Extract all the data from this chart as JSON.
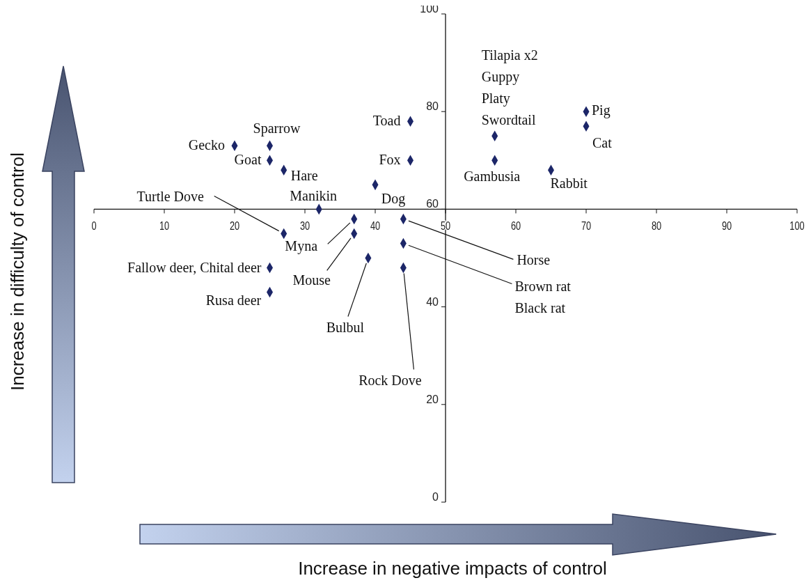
{
  "chart_data": {
    "type": "scatter",
    "xlabel": "Increase in negative impacts of control",
    "ylabel": "Increase in difficulty of control",
    "xlim": [
      0,
      100
    ],
    "ylim": [
      0,
      100
    ],
    "xticks": [
      0,
      10,
      20,
      30,
      40,
      50,
      60,
      70,
      80,
      90,
      100
    ],
    "yticks": [
      0,
      20,
      40,
      60,
      80,
      100
    ],
    "marker": "diamond",
    "grid": false,
    "series": [
      {
        "color": "#1c2668",
        "x": [
          20,
          25,
          25,
          27,
          32,
          27,
          37,
          37,
          25,
          25,
          39,
          40,
          45,
          45,
          44,
          44,
          44,
          57,
          57,
          70,
          70,
          65
        ],
        "values": [
          73,
          73,
          70,
          68,
          60,
          55,
          58,
          55,
          48,
          43,
          50,
          65,
          78,
          70,
          58,
          53,
          48,
          75,
          70,
          80,
          77,
          68
        ]
      }
    ],
    "annotations": [
      {
        "text": "Gecko",
        "x": 20,
        "y": 73
      },
      {
        "text": "Sparrow",
        "x": 25,
        "y": 73
      },
      {
        "text": "Goat",
        "x": 25,
        "y": 70
      },
      {
        "text": "Hare",
        "x": 27,
        "y": 68
      },
      {
        "text": "Manikin",
        "x": 32,
        "y": 60
      },
      {
        "text": "Turtle Dove",
        "x": 27,
        "y": 55
      },
      {
        "text": "Myna",
        "x": 37,
        "y": 58
      },
      {
        "text": "Mouse",
        "x": 37,
        "y": 55
      },
      {
        "text": "Fallow deer, Chital deer",
        "x": 25,
        "y": 48
      },
      {
        "text": "Rusa deer",
        "x": 25,
        "y": 43
      },
      {
        "text": "Bulbul",
        "x": 39,
        "y": 50
      },
      {
        "text": "Dog",
        "x": 40,
        "y": 65
      },
      {
        "text": "Toad",
        "x": 45,
        "y": 78
      },
      {
        "text": "Fox",
        "x": 45,
        "y": 70
      },
      {
        "text": "Horse",
        "x": 44,
        "y": 58
      },
      {
        "text": "Brown rat\nBlack rat",
        "x": 44,
        "y": 53
      },
      {
        "text": "Rock Dove",
        "x": 44,
        "y": 48
      },
      {
        "text": "Tilapia x2\nGuppy\nPlaty\nSwordtail",
        "x": 57,
        "y": 75
      },
      {
        "text": "Gambusia",
        "x": 57,
        "y": 70
      },
      {
        "text": "Pig",
        "x": 70,
        "y": 80
      },
      {
        "text": "Cat",
        "x": 70,
        "y": 77
      },
      {
        "text": "Rabbit",
        "x": 65,
        "y": 68
      }
    ]
  }
}
